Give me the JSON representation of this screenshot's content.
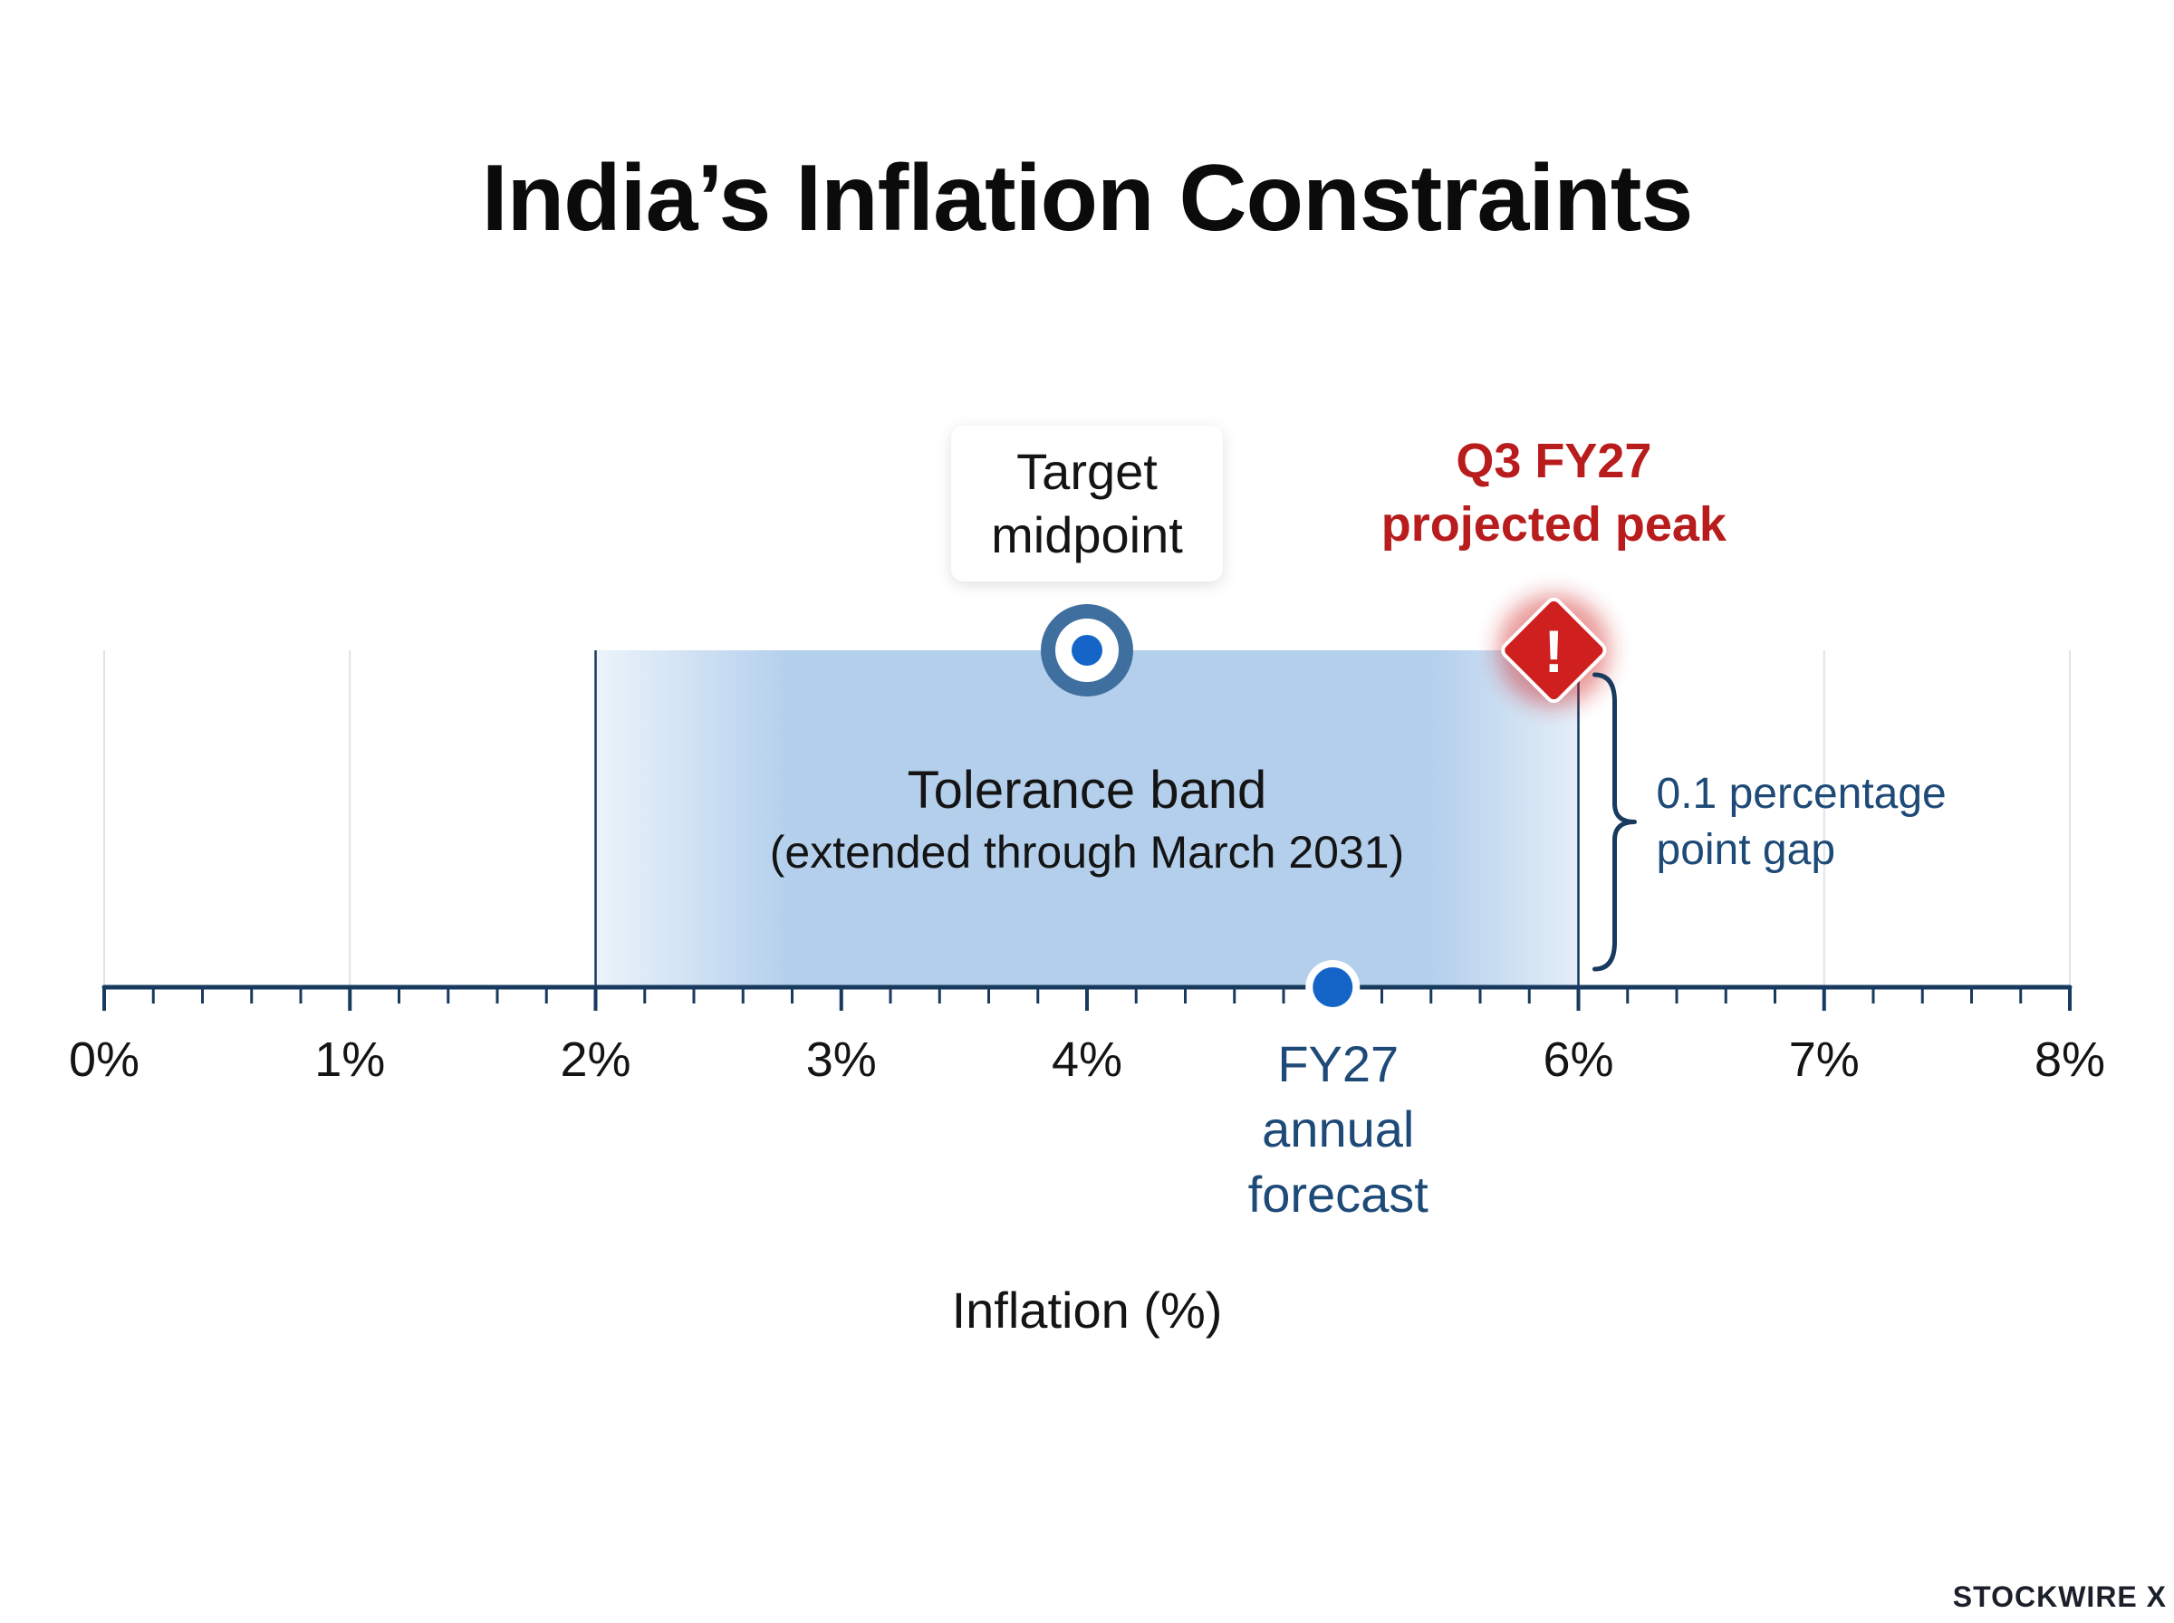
{
  "chart_data": {
    "type": "number-line",
    "title": "India’s Inflation Constraints",
    "xlabel": "Inflation (%)",
    "xlim": [
      0,
      8
    ],
    "ticks": [
      {
        "value": 0,
        "label": "0%"
      },
      {
        "value": 1,
        "label": "1%"
      },
      {
        "value": 2,
        "label": "2%"
      },
      {
        "value": 3,
        "label": "3%"
      },
      {
        "value": 4,
        "label": "4%"
      },
      {
        "value": 5,
        "label": ""
      },
      {
        "value": 6,
        "label": "6%"
      },
      {
        "value": 7,
        "label": "7%"
      },
      {
        "value": 8,
        "label": "8%"
      }
    ],
    "minor_tick_step": 0.2,
    "grid": true,
    "band": {
      "from": 2,
      "to": 6,
      "label": "Tolerance band",
      "sublabel": "(extended through March 2031)"
    },
    "markers": [
      {
        "id": "target",
        "value": 4,
        "label_lines": [
          "Target",
          "midpoint"
        ]
      },
      {
        "id": "forecast",
        "value": 5,
        "label_lines": [
          "FY27",
          "annual",
          "forecast"
        ]
      },
      {
        "id": "peak",
        "value": 5.9,
        "label_lines": [
          "Q3 FY27",
          "projected peak"
        ]
      }
    ],
    "gap": {
      "from": 5.9,
      "to": 6,
      "label_lines": [
        "0.1 percentage",
        "point gap"
      ]
    },
    "colors": {
      "axis": "#173a5e",
      "band": "#b3cfec",
      "marker": "#1565c8",
      "warning": "#d01f1f",
      "peak_text": "#b81c1c",
      "annotation": "#1e4a78"
    }
  },
  "brand": "STOCKWIRE X"
}
